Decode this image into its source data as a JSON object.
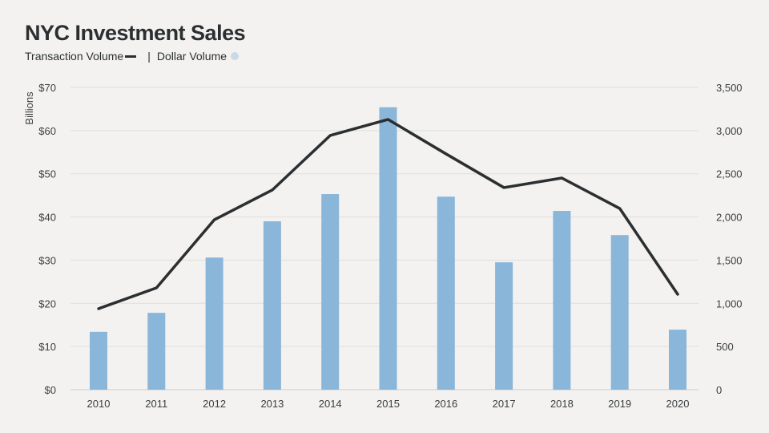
{
  "title": "NYC Investment Sales",
  "legend": {
    "line_label": "Transaction Volume",
    "separator": "|",
    "bar_label": "Dollar Volume"
  },
  "chart_data": {
    "type": "bar+line",
    "title": "NYC Investment Sales",
    "categories": [
      "2010",
      "2011",
      "2012",
      "2013",
      "2014",
      "2015",
      "2016",
      "2017",
      "2018",
      "2019",
      "2020"
    ],
    "series": [
      {
        "name": "Dollar Volume",
        "type": "bar",
        "axis": "left",
        "color": "#8ab6da",
        "values": [
          13.4,
          17.8,
          30.6,
          39.0,
          45.3,
          65.4,
          44.7,
          29.5,
          41.4,
          35.8,
          13.9
        ]
      },
      {
        "name": "Transaction Volume",
        "type": "line",
        "axis": "right",
        "color": "#2b2f31",
        "values": [
          938,
          1179,
          1968,
          2312,
          2943,
          3129,
          2730,
          2340,
          2451,
          2098,
          1105
        ]
      }
    ],
    "ylabel": "Billions",
    "ylim": [
      0,
      70
    ],
    "yticks": [
      "$0",
      "$10",
      "$20",
      "$30",
      "$40",
      "$50",
      "$60",
      "$70"
    ],
    "y2lim": [
      0,
      3500
    ],
    "y2ticks": [
      "0",
      "500",
      "1,000",
      "1,500",
      "2,000",
      "2,500",
      "3,000",
      "3,500"
    ],
    "grid": true,
    "legend_position": "top-left"
  }
}
